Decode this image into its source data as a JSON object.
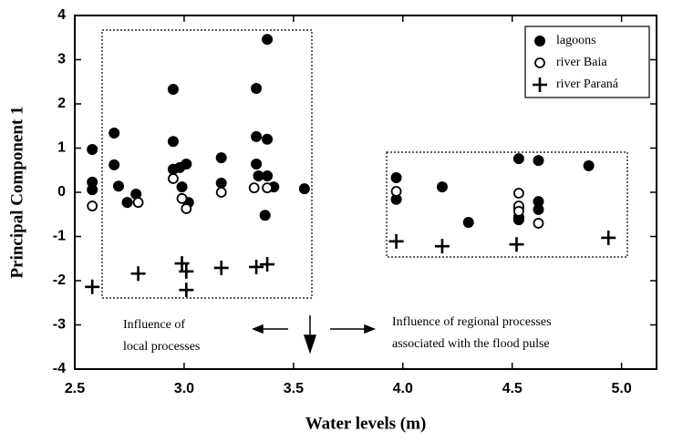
{
  "chart_data": {
    "type": "scatter",
    "x_label": "Water levels (m)",
    "y_label": "Principal Component 1",
    "xlim": [
      2.5,
      5.16
    ],
    "ylim": [
      -4,
      4
    ],
    "xticks": [
      {
        "value": 2.5,
        "label": "2.5"
      },
      {
        "value": 3.0,
        "label": "3.0"
      },
      {
        "value": 3.5,
        "label": "3.5"
      },
      {
        "value": 4.0,
        "label": "4.0"
      },
      {
        "value": 4.5,
        "label": "4.5"
      },
      {
        "value": 5.0,
        "label": "5.0"
      }
    ],
    "yticks": [
      -4,
      -3,
      -2,
      -1,
      0,
      1,
      2,
      3,
      4
    ],
    "grid": false,
    "legend": "upper right",
    "annotations": [
      [
        "Influence of",
        "local processes"
      ],
      [
        "Influence of regional processes",
        "associated with the flood pulse"
      ]
    ],
    "series": [
      {
        "name": "lagoons",
        "color": "#000000",
        "marker": "filled-circle",
        "x": [
          2.58,
          2.58,
          2.58,
          2.68,
          2.68,
          2.7,
          2.74,
          2.78,
          2.95,
          2.95,
          2.95,
          2.98,
          2.99,
          3.01,
          3.02,
          3.17,
          3.17,
          3.33,
          3.33,
          3.33,
          3.34,
          3.38,
          3.38,
          3.38,
          3.37,
          3.41,
          3.55,
          3.97,
          3.97,
          4.18,
          4.3,
          4.53,
          4.53,
          4.53,
          4.53,
          4.62,
          4.62,
          4.62,
          4.85
        ],
        "values": [
          0.97,
          0.23,
          0.06,
          1.34,
          0.62,
          0.14,
          -0.23,
          -0.04,
          2.33,
          1.15,
          0.52,
          0.56,
          0.12,
          0.64,
          -0.23,
          0.78,
          0.21,
          2.35,
          1.26,
          0.64,
          0.37,
          3.46,
          1.2,
          0.37,
          -0.52,
          0.12,
          0.08,
          0.33,
          -0.16,
          0.12,
          -0.68,
          0.76,
          -0.35,
          -0.56,
          -0.62,
          0.72,
          -0.21,
          -0.39,
          0.6
        ]
      },
      {
        "name": "river Baia",
        "color": "#000000",
        "marker": "open-circle",
        "x": [
          2.58,
          2.79,
          2.95,
          2.99,
          3.01,
          3.17,
          3.32,
          3.38,
          3.97,
          4.53,
          4.53,
          4.53,
          4.62
        ],
        "values": [
          -0.31,
          -0.23,
          0.31,
          -0.14,
          -0.37,
          0.0,
          0.1,
          0.1,
          0.02,
          -0.02,
          -0.31,
          -0.43,
          -0.7
        ]
      },
      {
        "name": "river Paraná",
        "color": "#000000",
        "marker": "plus",
        "x": [
          2.58,
          2.79,
          2.99,
          3.01,
          3.01,
          3.17,
          3.33,
          3.38,
          3.97,
          4.18,
          4.52,
          4.94
        ],
        "values": [
          -2.14,
          -1.84,
          -1.61,
          -1.79,
          -2.21,
          -1.71,
          -1.69,
          -1.63,
          -1.11,
          -1.22,
          -1.18,
          -1.03
        ]
      }
    ]
  }
}
